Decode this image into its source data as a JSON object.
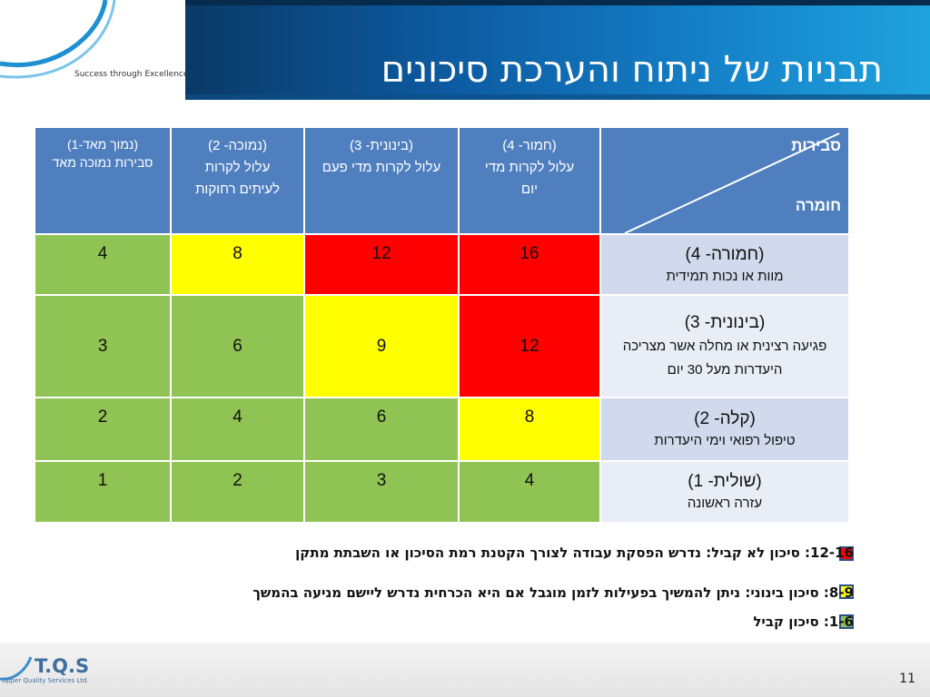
{
  "header": {
    "title": "תבניות של ניתוח והערכת סיכונים",
    "logo_tagline": "Success through Excellence"
  },
  "table": {
    "corner_top": "סבירות",
    "corner_bottom": "חומרה",
    "columns": [
      {
        "label": "(נמוך מאד-1)\nסבירות נמוכה מאד"
      },
      {
        "label": "(נמוכה- 2)\nעלול לקרות לעיתים רחוקות"
      },
      {
        "label": "(בינונית- 3)\nעלול לקרות מדי פעם"
      },
      {
        "label": "(חמור- 4)\nעלול לקרות מדי יום"
      }
    ],
    "rows": [
      {
        "level": "(חמורה- 4)",
        "desc": "מוות או נכות תמידית",
        "values": [
          "4",
          "8",
          "12",
          "16"
        ],
        "colors": [
          "g",
          "y",
          "r",
          "r"
        ]
      },
      {
        "level": "(בינונית- 3)",
        "desc": "פגיעה רצינית או מחלה אשר מצריכה היעדרות מעל 30 יום",
        "values": [
          "3",
          "6",
          "9",
          "12"
        ],
        "colors": [
          "g",
          "g",
          "y",
          "r"
        ]
      },
      {
        "level": "(קלה- 2)",
        "desc": "טיפול רפואי וימי היעדרות",
        "values": [
          "2",
          "4",
          "6",
          "8"
        ],
        "colors": [
          "g",
          "g",
          "g",
          "y"
        ]
      },
      {
        "level": "(שולית- 1)",
        "desc": "עזרה ראשונה",
        "values": [
          "1",
          "2",
          "3",
          "4"
        ],
        "colors": [
          "g",
          "g",
          "g",
          "g"
        ]
      }
    ]
  },
  "legend": [
    {
      "text": "12-16: סיכון לא קביל: נדרש הפסקת עבודה לצורך הקטנת רמת הסיכון או השבתת מתקן",
      "color": "#ff0000"
    },
    {
      "text": "8-9: סיכון בינוני: ניתן להמשיך בפעילות לזמן מוגבל אם היא הכרחית נדרש ליישם מניעה בהמשך",
      "color": "#ffff00"
    },
    {
      "text": "1-6: סיכון קביל",
      "color": "#8fc353"
    }
  ],
  "footer": {
    "brand": "T.Q.S",
    "sub": "Upper Quality Services Ltd.",
    "page_number": "11"
  },
  "colors": {
    "header_blue": "#4f7fbf",
    "row_label": "#d1d9ec",
    "green": "#8fc353",
    "yellow": "#ffff00",
    "red": "#ff0000"
  }
}
